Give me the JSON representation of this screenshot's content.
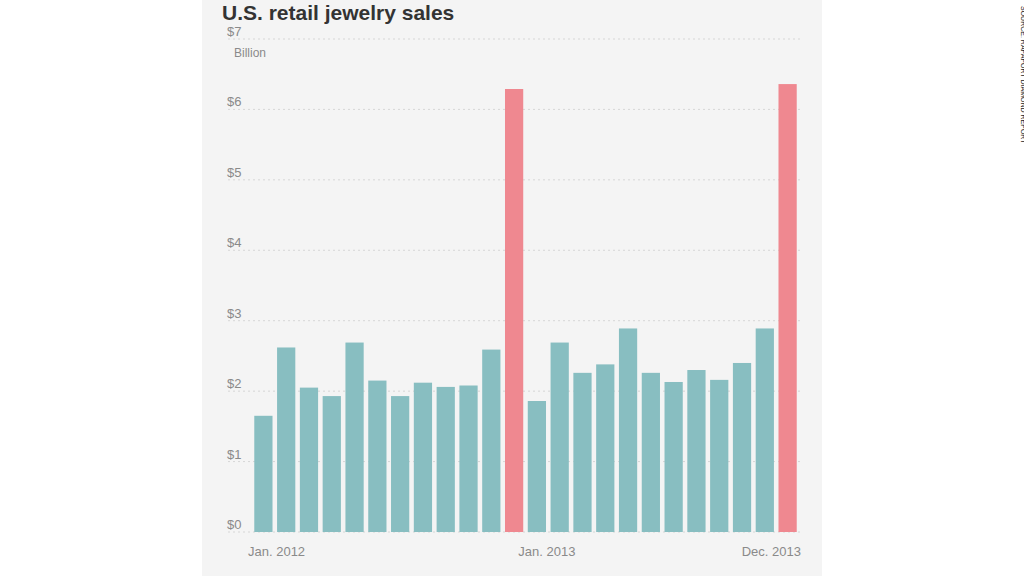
{
  "chart_data": {
    "type": "bar",
    "title": "U.S. retail jewelry sales",
    "y_label": "Billion",
    "source": "SOURCE: RAPAPORT DIAMOND REPORT",
    "categories": [
      "Jan. 2012",
      null,
      null,
      null,
      null,
      null,
      null,
      null,
      null,
      null,
      null,
      null,
      "Jan. 2013",
      null,
      null,
      null,
      null,
      null,
      null,
      null,
      null,
      null,
      null,
      "Dec. 2013"
    ],
    "values": [
      1.65,
      2.62,
      2.05,
      1.93,
      2.69,
      2.15,
      1.93,
      2.12,
      2.06,
      2.08,
      2.59,
      6.29,
      1.86,
      2.69,
      2.26,
      2.38,
      2.89,
      2.26,
      2.13,
      2.3,
      2.16,
      2.4,
      2.89,
      6.36
    ],
    "colors": [
      "#88bec1",
      "#88bec1",
      "#88bec1",
      "#88bec1",
      "#88bec1",
      "#88bec1",
      "#88bec1",
      "#88bec1",
      "#88bec1",
      "#88bec1",
      "#88bec1",
      "#ef8890",
      "#88bec1",
      "#88bec1",
      "#88bec1",
      "#88bec1",
      "#88bec1",
      "#88bec1",
      "#88bec1",
      "#88bec1",
      "#88bec1",
      "#88bec1",
      "#88bec1",
      "#ef8890"
    ],
    "ylim": [
      0,
      7
    ],
    "yticks": [
      {
        "value": 0,
        "label": "$0"
      },
      {
        "value": 1,
        "label": "$1"
      },
      {
        "value": 2,
        "label": "$2"
      },
      {
        "value": 3,
        "label": "$3"
      },
      {
        "value": 4,
        "label": "$4"
      },
      {
        "value": 5,
        "label": "$5"
      },
      {
        "value": 6,
        "label": "$6"
      },
      {
        "value": 7,
        "label": "$7"
      }
    ],
    "grid": true
  }
}
